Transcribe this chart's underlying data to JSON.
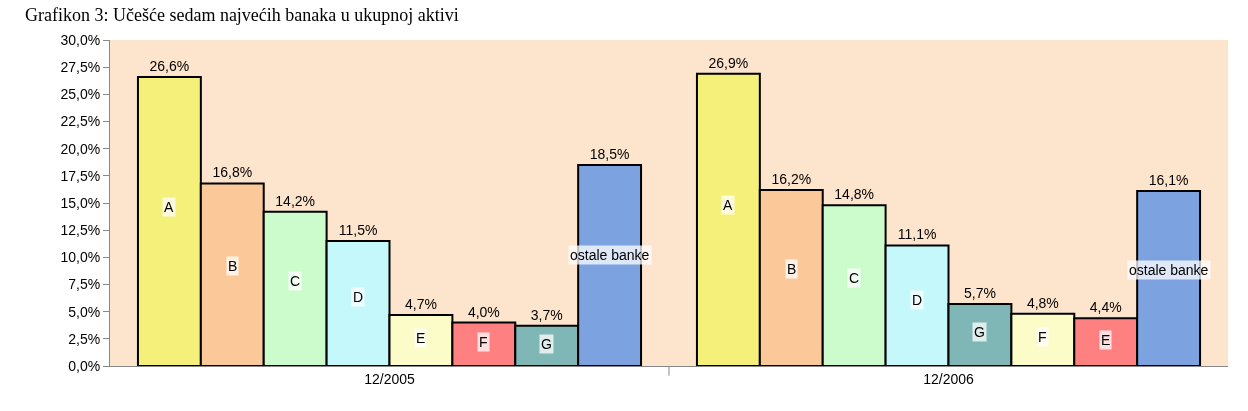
{
  "chart_data": {
    "type": "bar",
    "title": "Grafikon 3: Učešće sedam najvećih banaka u ukupnoj aktivi",
    "categories": [
      "12/2005",
      "12/2006"
    ],
    "series": [
      {
        "color": "#f5f07a",
        "values": [
          26.6,
          26.9
        ],
        "value_labels": [
          "26,6%",
          "26,9%"
        ]
      },
      {
        "color": "#fbc89a",
        "values": [
          16.8,
          16.2
        ],
        "value_labels": [
          "16,8%",
          "16,2%"
        ]
      },
      {
        "color": "#ccfccc",
        "values": [
          14.2,
          14.8
        ],
        "value_labels": [
          "14,2%",
          "14,8%"
        ]
      },
      {
        "color": "#c4f8fa",
        "values": [
          11.5,
          11.1
        ],
        "value_labels": [
          "11,5%",
          "11,1%"
        ]
      },
      {
        "colors": [
          "#fcfcc8",
          "#7fb6b6"
        ],
        "values": [
          4.7,
          5.7
        ],
        "value_labels": [
          "4,7%",
          "5,7%"
        ]
      },
      {
        "colors": [
          "#ff8080",
          "#fcfcc8"
        ],
        "values": [
          4.0,
          4.8
        ],
        "value_labels": [
          "4,0%",
          "4,8%"
        ]
      },
      {
        "colors": [
          "#7fb6b6",
          "#ff8080"
        ],
        "values": [
          3.7,
          4.4
        ],
        "value_labels": [
          "3,7%",
          "4,4%"
        ]
      },
      {
        "color": "#7da2e0",
        "values": [
          18.5,
          16.1
        ],
        "value_labels": [
          "18,5%",
          "16,1%"
        ]
      }
    ],
    "annotations": [
      "A",
      "B",
      "C",
      "D",
      "E",
      "F",
      "G",
      "ostale banke",
      "A",
      "B",
      "C",
      "D",
      "G",
      "F",
      "E",
      "ostale banke"
    ],
    "ylim": [
      0,
      30
    ],
    "yticks": [
      {
        "value": 0,
        "label": "0,0%"
      },
      {
        "value": 2.5,
        "label": "2,5%"
      },
      {
        "value": 5,
        "label": "5,0%"
      },
      {
        "value": 7.5,
        "label": "7,5%"
      },
      {
        "value": 10,
        "label": "10,0%"
      },
      {
        "value": 12.5,
        "label": "12,5%"
      },
      {
        "value": 15,
        "label": "15,0%"
      },
      {
        "value": 17.5,
        "label": "17,5%"
      },
      {
        "value": 20,
        "label": "20,0%"
      },
      {
        "value": 22.5,
        "label": "22,5%"
      },
      {
        "value": 25,
        "label": "25,0%"
      },
      {
        "value": 27.5,
        "label": "27,5%"
      },
      {
        "value": 30,
        "label": "30,0%"
      }
    ],
    "grid": false
  }
}
